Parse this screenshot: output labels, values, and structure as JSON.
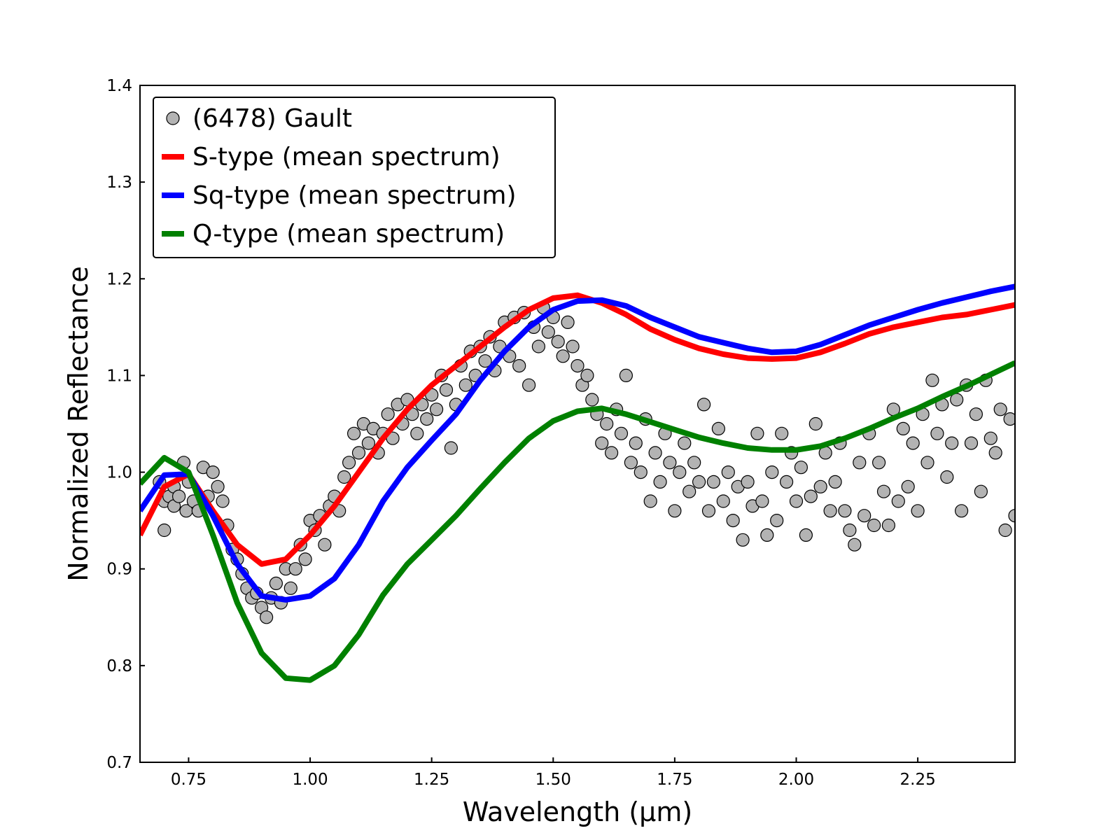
{
  "chart_data": {
    "type": "line",
    "title": "",
    "xlabel": "Wavelength (μm)",
    "ylabel": "Normalized Reflectance",
    "xlim": [
      0.65,
      2.45
    ],
    "ylim": [
      0.7,
      1.4
    ],
    "xticks": [
      0.75,
      1.0,
      1.25,
      1.5,
      1.75,
      2.0,
      2.25
    ],
    "xtick_labels": [
      "0.75",
      "1.00",
      "1.25",
      "1.50",
      "1.75",
      "2.00",
      "2.25"
    ],
    "yticks": [
      0.7,
      0.8,
      0.9,
      1.0,
      1.1,
      1.2,
      1.3,
      1.4
    ],
    "ytick_labels": [
      "0.7",
      "0.8",
      "0.9",
      "1.0",
      "1.1",
      "1.2",
      "1.3",
      "1.4"
    ],
    "legend_position": "top-left",
    "series": [
      {
        "name": "(6478) Gault",
        "kind": "scatter",
        "color": "#b3b3b3",
        "edge_color": "#000000",
        "points": [
          [
            0.69,
            0.99
          ],
          [
            0.7,
            0.97
          ],
          [
            0.7,
            0.94
          ],
          [
            0.71,
            0.975
          ],
          [
            0.72,
            0.965
          ],
          [
            0.72,
            0.985
          ],
          [
            0.73,
            0.975
          ],
          [
            0.74,
            1.01
          ],
          [
            0.745,
            0.96
          ],
          [
            0.75,
            0.99
          ],
          [
            0.76,
            0.97
          ],
          [
            0.77,
            0.96
          ],
          [
            0.78,
            1.005
          ],
          [
            0.79,
            0.975
          ],
          [
            0.8,
            1.0
          ],
          [
            0.81,
            0.985
          ],
          [
            0.82,
            0.97
          ],
          [
            0.83,
            0.945
          ],
          [
            0.84,
            0.92
          ],
          [
            0.85,
            0.91
          ],
          [
            0.86,
            0.895
          ],
          [
            0.87,
            0.88
          ],
          [
            0.88,
            0.87
          ],
          [
            0.89,
            0.875
          ],
          [
            0.9,
            0.86
          ],
          [
            0.91,
            0.85
          ],
          [
            0.92,
            0.87
          ],
          [
            0.93,
            0.885
          ],
          [
            0.94,
            0.865
          ],
          [
            0.95,
            0.9
          ],
          [
            0.96,
            0.88
          ],
          [
            0.97,
            0.9
          ],
          [
            0.98,
            0.925
          ],
          [
            0.99,
            0.91
          ],
          [
            1.0,
            0.95
          ],
          [
            1.01,
            0.94
          ],
          [
            1.02,
            0.955
          ],
          [
            1.03,
            0.925
          ],
          [
            1.04,
            0.965
          ],
          [
            1.05,
            0.975
          ],
          [
            1.06,
            0.96
          ],
          [
            1.07,
            0.995
          ],
          [
            1.08,
            1.01
          ],
          [
            1.09,
            1.04
          ],
          [
            1.1,
            1.02
          ],
          [
            1.11,
            1.05
          ],
          [
            1.12,
            1.03
          ],
          [
            1.13,
            1.045
          ],
          [
            1.14,
            1.02
          ],
          [
            1.15,
            1.04
          ],
          [
            1.16,
            1.06
          ],
          [
            1.17,
            1.035
          ],
          [
            1.18,
            1.07
          ],
          [
            1.19,
            1.05
          ],
          [
            1.2,
            1.075
          ],
          [
            1.21,
            1.06
          ],
          [
            1.22,
            1.04
          ],
          [
            1.23,
            1.07
          ],
          [
            1.24,
            1.055
          ],
          [
            1.25,
            1.08
          ],
          [
            1.26,
            1.065
          ],
          [
            1.27,
            1.1
          ],
          [
            1.28,
            1.085
          ],
          [
            1.29,
            1.025
          ],
          [
            1.3,
            1.07
          ],
          [
            1.31,
            1.11
          ],
          [
            1.32,
            1.09
          ],
          [
            1.33,
            1.125
          ],
          [
            1.34,
            1.1
          ],
          [
            1.35,
            1.13
          ],
          [
            1.36,
            1.115
          ],
          [
            1.37,
            1.14
          ],
          [
            1.38,
            1.105
          ],
          [
            1.39,
            1.13
          ],
          [
            1.4,
            1.155
          ],
          [
            1.41,
            1.12
          ],
          [
            1.42,
            1.16
          ],
          [
            1.43,
            1.11
          ],
          [
            1.44,
            1.165
          ],
          [
            1.45,
            1.09
          ],
          [
            1.46,
            1.15
          ],
          [
            1.47,
            1.13
          ],
          [
            1.48,
            1.17
          ],
          [
            1.49,
            1.145
          ],
          [
            1.5,
            1.16
          ],
          [
            1.51,
            1.135
          ],
          [
            1.52,
            1.12
          ],
          [
            1.53,
            1.155
          ],
          [
            1.54,
            1.13
          ],
          [
            1.55,
            1.11
          ],
          [
            1.56,
            1.09
          ],
          [
            1.57,
            1.1
          ],
          [
            1.58,
            1.075
          ],
          [
            1.59,
            1.06
          ],
          [
            1.6,
            1.03
          ],
          [
            1.61,
            1.05
          ],
          [
            1.62,
            1.02
          ],
          [
            1.63,
            1.065
          ],
          [
            1.64,
            1.04
          ],
          [
            1.65,
            1.1
          ],
          [
            1.66,
            1.01
          ],
          [
            1.67,
            1.03
          ],
          [
            1.68,
            1.0
          ],
          [
            1.69,
            1.055
          ],
          [
            1.7,
            0.97
          ],
          [
            1.71,
            1.02
          ],
          [
            1.72,
            0.99
          ],
          [
            1.73,
            1.04
          ],
          [
            1.74,
            1.01
          ],
          [
            1.75,
            0.96
          ],
          [
            1.76,
            1.0
          ],
          [
            1.77,
            1.03
          ],
          [
            1.78,
            0.98
          ],
          [
            1.79,
            1.01
          ],
          [
            1.8,
            0.99
          ],
          [
            1.81,
            1.07
          ],
          [
            1.82,
            0.96
          ],
          [
            1.83,
            0.99
          ],
          [
            1.84,
            1.045
          ],
          [
            1.85,
            0.97
          ],
          [
            1.86,
            1.0
          ],
          [
            1.87,
            0.95
          ],
          [
            1.88,
            0.985
          ],
          [
            1.89,
            0.93
          ],
          [
            1.9,
            0.99
          ],
          [
            1.91,
            0.965
          ],
          [
            1.92,
            1.04
          ],
          [
            1.93,
            0.97
          ],
          [
            1.94,
            0.935
          ],
          [
            1.95,
            1.0
          ],
          [
            1.96,
            0.95
          ],
          [
            1.97,
            1.04
          ],
          [
            1.98,
            0.99
          ],
          [
            1.99,
            1.02
          ],
          [
            2.0,
            0.97
          ],
          [
            2.01,
            1.005
          ],
          [
            2.02,
            0.935
          ],
          [
            2.03,
            0.975
          ],
          [
            2.04,
            1.05
          ],
          [
            2.05,
            0.985
          ],
          [
            2.06,
            1.02
          ],
          [
            2.07,
            0.96
          ],
          [
            2.08,
            0.99
          ],
          [
            2.09,
            1.03
          ],
          [
            2.1,
            0.96
          ],
          [
            2.11,
            0.94
          ],
          [
            2.12,
            0.925
          ],
          [
            2.13,
            1.01
          ],
          [
            2.14,
            0.955
          ],
          [
            2.15,
            1.04
          ],
          [
            2.16,
            0.945
          ],
          [
            2.17,
            1.01
          ],
          [
            2.18,
            0.98
          ],
          [
            2.19,
            0.945
          ],
          [
            2.2,
            1.065
          ],
          [
            2.21,
            0.97
          ],
          [
            2.22,
            1.045
          ],
          [
            2.23,
            0.985
          ],
          [
            2.24,
            1.03
          ],
          [
            2.25,
            0.96
          ],
          [
            2.26,
            1.06
          ],
          [
            2.27,
            1.01
          ],
          [
            2.28,
            1.095
          ],
          [
            2.29,
            1.04
          ],
          [
            2.3,
            1.07
          ],
          [
            2.31,
            0.995
          ],
          [
            2.32,
            1.03
          ],
          [
            2.33,
            1.075
          ],
          [
            2.34,
            0.96
          ],
          [
            2.35,
            1.09
          ],
          [
            2.36,
            1.03
          ],
          [
            2.37,
            1.06
          ],
          [
            2.38,
            0.98
          ],
          [
            2.39,
            1.095
          ],
          [
            2.4,
            1.035
          ],
          [
            2.41,
            1.02
          ],
          [
            2.42,
            1.065
          ],
          [
            2.43,
            0.94
          ],
          [
            2.44,
            1.055
          ],
          [
            2.45,
            0.955
          ]
        ]
      },
      {
        "name": "S-type (mean spectrum)",
        "kind": "line",
        "color": "#ff0000",
        "x": [
          0.65,
          0.7,
          0.75,
          0.8,
          0.85,
          0.9,
          0.95,
          1.0,
          1.05,
          1.1,
          1.15,
          1.2,
          1.25,
          1.3,
          1.35,
          1.4,
          1.45,
          1.5,
          1.55,
          1.6,
          1.65,
          1.7,
          1.75,
          1.8,
          1.85,
          1.9,
          1.95,
          2.0,
          2.05,
          2.1,
          2.15,
          2.2,
          2.25,
          2.3,
          2.35,
          2.4,
          2.45
        ],
        "y": [
          0.935,
          0.985,
          0.998,
          0.96,
          0.925,
          0.905,
          0.91,
          0.935,
          0.965,
          1.0,
          1.035,
          1.065,
          1.09,
          1.11,
          1.13,
          1.15,
          1.168,
          1.18,
          1.183,
          1.175,
          1.163,
          1.148,
          1.137,
          1.128,
          1.122,
          1.118,
          1.117,
          1.118,
          1.124,
          1.133,
          1.143,
          1.15,
          1.155,
          1.16,
          1.163,
          1.168,
          1.173
        ]
      },
      {
        "name": "Sq-type (mean spectrum)",
        "kind": "line",
        "color": "#0000ff",
        "x": [
          0.65,
          0.7,
          0.75,
          0.8,
          0.85,
          0.9,
          0.95,
          1.0,
          1.05,
          1.1,
          1.15,
          1.2,
          1.25,
          1.3,
          1.35,
          1.4,
          1.45,
          1.5,
          1.55,
          1.6,
          1.65,
          1.7,
          1.75,
          1.8,
          1.85,
          1.9,
          1.95,
          2.0,
          2.05,
          2.1,
          2.15,
          2.2,
          2.25,
          2.3,
          2.35,
          2.4,
          2.45
        ],
        "y": [
          0.96,
          0.997,
          0.998,
          0.955,
          0.905,
          0.872,
          0.868,
          0.872,
          0.89,
          0.925,
          0.97,
          1.005,
          1.033,
          1.06,
          1.095,
          1.125,
          1.15,
          1.168,
          1.177,
          1.178,
          1.172,
          1.16,
          1.15,
          1.14,
          1.134,
          1.128,
          1.124,
          1.125,
          1.132,
          1.142,
          1.152,
          1.16,
          1.168,
          1.175,
          1.181,
          1.187,
          1.192
        ]
      },
      {
        "name": "Q-type (mean spectrum)",
        "kind": "line",
        "color": "#008000",
        "x": [
          0.65,
          0.7,
          0.75,
          0.8,
          0.85,
          0.9,
          0.95,
          1.0,
          1.05,
          1.1,
          1.15,
          1.2,
          1.25,
          1.3,
          1.35,
          1.4,
          1.45,
          1.5,
          1.55,
          1.6,
          1.65,
          1.7,
          1.75,
          1.8,
          1.85,
          1.9,
          1.95,
          2.0,
          2.05,
          2.1,
          2.15,
          2.2,
          2.25,
          2.3,
          2.35,
          2.4,
          2.45
        ],
        "y": [
          0.988,
          1.015,
          1.0,
          0.935,
          0.865,
          0.813,
          0.787,
          0.785,
          0.8,
          0.832,
          0.873,
          0.905,
          0.93,
          0.955,
          0.983,
          1.01,
          1.035,
          1.053,
          1.063,
          1.066,
          1.06,
          1.052,
          1.044,
          1.036,
          1.03,
          1.025,
          1.023,
          1.023,
          1.027,
          1.035,
          1.045,
          1.056,
          1.066,
          1.078,
          1.089,
          1.101,
          1.113
        ]
      }
    ]
  }
}
